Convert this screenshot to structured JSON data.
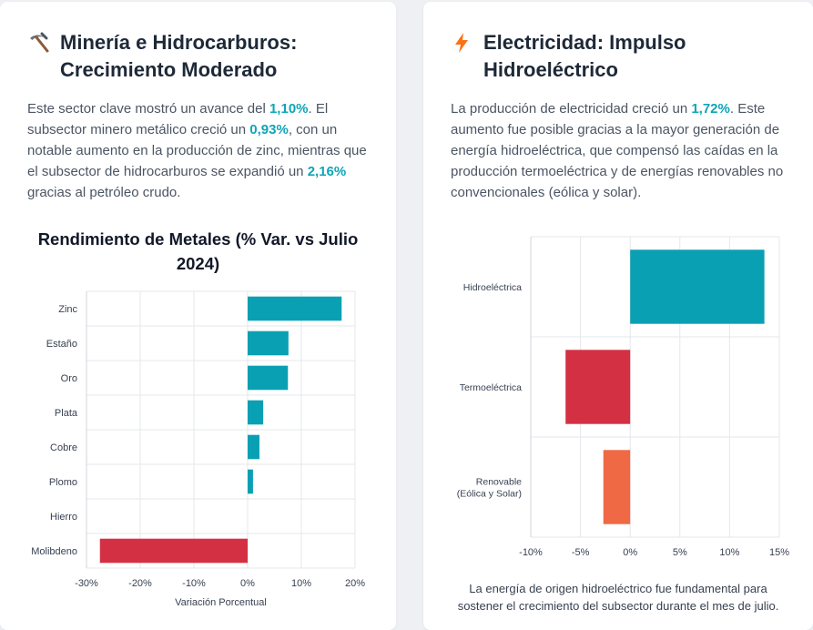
{
  "left": {
    "icon": "pickaxe-icon",
    "title": "Minería e Hidrocarburos: Crecimiento Moderado",
    "paragraph": {
      "p1": "Este sector clave mostró un avance del ",
      "v1": "1,10%",
      "p2": ". El subsector minero metálico creció un ",
      "v2": "0,93%",
      "p3": ", con un notable aumento en la producción de zinc, mientras que el subsector de hidrocarburos se expandió un ",
      "v3": "2,16%",
      "p4": " gracias al petróleo crudo."
    }
  },
  "right": {
    "icon": "lightning-icon",
    "title": "Electricidad: Impulso Hidroeléctrico",
    "paragraph": {
      "p1": "La producción de electricidad creció un ",
      "v1": "1,72%",
      "p2": ". Este aumento fue posible gracias a la mayor generación de energía hidroeléctrica, que compensó las caídas en la producción termoeléctrica y de energías renovables no convencionales (eólica y solar)."
    },
    "caption": "La energía de origen hidroeléctrico fue fundamental para sostener el crecimiento del subsector durante el mes de julio."
  },
  "colors": {
    "positive": "#0aa0b4",
    "negative": "#d33143",
    "renewable": "#ef6944",
    "highlight": "#0ea5b7"
  },
  "chart_data": [
    {
      "type": "bar",
      "orientation": "horizontal",
      "title": "Rendimiento de Metales (% Var. vs Julio 2024)",
      "xlabel": "Variación Porcentual",
      "ylabel": "",
      "categories": [
        "Zinc",
        "Estaño",
        "Oro",
        "Plata",
        "Cobre",
        "Plomo",
        "Hierro",
        "Molibdeno"
      ],
      "values": [
        17.5,
        7.6,
        7.5,
        2.9,
        2.2,
        1.0,
        0.0,
        -27.5
      ],
      "xlim": [
        -30,
        20
      ],
      "xticks": [
        -30,
        -20,
        -10,
        0,
        10,
        20
      ],
      "xtick_labels": [
        "-30%",
        "-20%",
        "-10%",
        "0%",
        "10%",
        "20%"
      ],
      "grid": true
    },
    {
      "type": "bar",
      "orientation": "horizontal",
      "title": "",
      "xlabel": "",
      "ylabel": "",
      "categories": [
        "Hidroeléctrica",
        "Termoeléctrica",
        "Renovable (Eólica y Solar)"
      ],
      "category_lines": [
        [
          "Hidroeléctrica"
        ],
        [
          "Termoeléctrica"
        ],
        [
          "Renovable",
          "(Eólica y Solar)"
        ]
      ],
      "values": [
        13.5,
        -6.5,
        -2.7
      ],
      "xlim": [
        -10,
        15
      ],
      "xticks": [
        -10,
        -5,
        0,
        5,
        10,
        15
      ],
      "xtick_labels": [
        "-10%",
        "-5%",
        "0%",
        "5%",
        "10%",
        "15%"
      ],
      "grid": true
    }
  ]
}
